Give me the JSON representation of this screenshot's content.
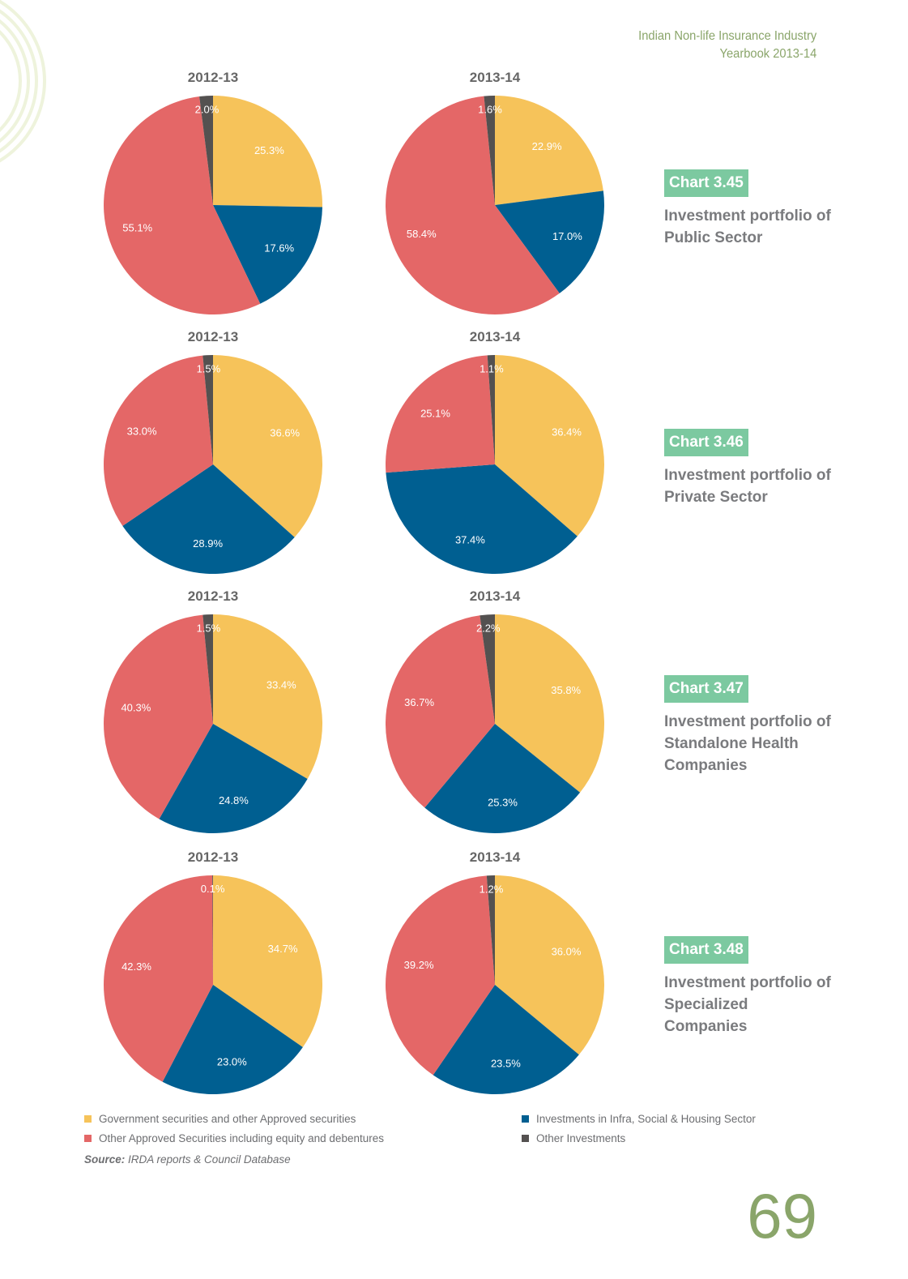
{
  "header": {
    "line1": "Indian Non-life Insurance Industry",
    "line2": "Yearbook 2013-14"
  },
  "colors": {
    "gov": "#f6c35a",
    "infra": "#005f91",
    "other_approved": "#e46767",
    "other_inv": "#545150",
    "accent": "#7cc9a0",
    "green": "#8aa56a"
  },
  "chart_data": [
    {
      "type": "pie",
      "chart_label": "Chart 3.45",
      "title": "Investment portfolio of Public Sector",
      "pies": [
        {
          "period": "2012-13",
          "values": [
            25.3,
            17.6,
            55.1,
            2.0
          ],
          "labels": [
            "25.3%",
            "17.6%",
            "55.1%",
            "2.0%"
          ]
        },
        {
          "period": "2013-14",
          "values": [
            22.9,
            17.0,
            58.4,
            1.6
          ],
          "labels": [
            "22.9%",
            "17.0%",
            "58.4%",
            "1.6%"
          ]
        }
      ]
    },
    {
      "type": "pie",
      "chart_label": "Chart 3.46",
      "title": "Investment portfolio of Private Sector",
      "pies": [
        {
          "period": "2012-13",
          "values": [
            36.6,
            28.9,
            33.0,
            1.5
          ],
          "labels": [
            "36.6%",
            "28.9%",
            "33.0%",
            "1.5%"
          ]
        },
        {
          "period": "2013-14",
          "values": [
            36.4,
            37.4,
            25.1,
            1.1
          ],
          "labels": [
            "36.4%",
            "37.4%",
            "25.1%",
            "1.1%"
          ]
        }
      ]
    },
    {
      "type": "pie",
      "chart_label": "Chart 3.47",
      "title": "Investment portfolio of Standalone Health Companies",
      "pies": [
        {
          "period": "2012-13",
          "values": [
            33.4,
            24.8,
            40.3,
            1.5
          ],
          "labels": [
            "33.4%",
            "24.8%",
            "40.3%",
            "1.5%"
          ]
        },
        {
          "period": "2013-14",
          "values": [
            35.8,
            25.3,
            36.7,
            2.2
          ],
          "labels": [
            "35.8%",
            "25.3%",
            "36.7%",
            "2.2%"
          ]
        }
      ]
    },
    {
      "type": "pie",
      "chart_label": "Chart 3.48",
      "title": "Investment portfolio of Specialized Companies",
      "pies": [
        {
          "period": "2012-13",
          "values": [
            34.7,
            23.0,
            42.3,
            0.1
          ],
          "labels": [
            "34.7%",
            "23.0%",
            "42.3%",
            "0.1%"
          ]
        },
        {
          "period": "2013-14",
          "values": [
            36.0,
            23.5,
            39.2,
            1.2
          ],
          "labels": [
            "36.0%",
            "23.5%",
            "39.2%",
            "1.2%"
          ]
        }
      ]
    }
  ],
  "legend": [
    {
      "label": "Government securities and other Approved securities",
      "color": "#f6c35a"
    },
    {
      "label": "Other Approved Securities including equity and debentures",
      "color": "#e46767"
    },
    {
      "label": "Investments in Infra, Social & Housing Sector",
      "color": "#005f91"
    },
    {
      "label": "Other Investments",
      "color": "#545150"
    }
  ],
  "source": {
    "label": "Source:",
    "text": "IRDA reports & Council Database"
  },
  "page_number": "69"
}
